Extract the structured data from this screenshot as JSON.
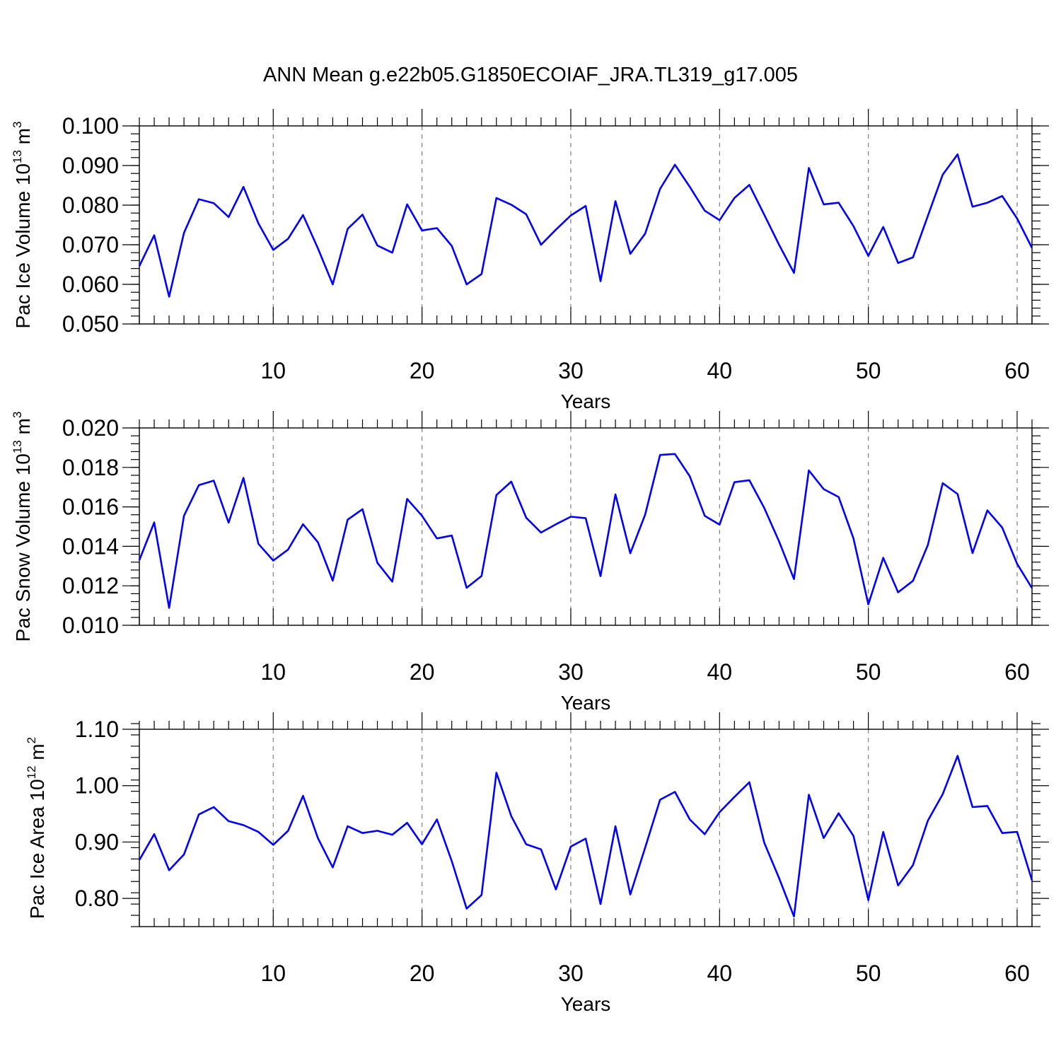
{
  "figure_title": "ANN Mean g.e22b05.G1850ECOIAF_JRA.TL319_g17.005",
  "chart_data": [
    {
      "type": "line",
      "title": "ANN Mean g.e22b05.G1850ECOIAF_JRA.TL319_g17.005",
      "xlabel": "Years",
      "ylabel": {
        "main": "Pac Ice Volume 10",
        "exp": "13",
        "unit": " m",
        "unit_exp": "3"
      },
      "xlim": [
        1,
        61
      ],
      "ylim": [
        0.05,
        0.1
      ],
      "x_ticks": [
        10,
        20,
        30,
        40,
        50,
        60
      ],
      "y_ticks": [
        0.05,
        0.06,
        0.07,
        0.08,
        0.09,
        0.1
      ],
      "y_tick_labels": [
        "0.050",
        "0.060",
        "0.070",
        "0.080",
        "0.090",
        "0.100"
      ],
      "y_minor_step": 0.002,
      "grid": "vertical dashed at major x ticks",
      "color": "#0000ff",
      "x": [
        1,
        2,
        3,
        4,
        5,
        6,
        7,
        8,
        9,
        10,
        11,
        12,
        13,
        14,
        15,
        16,
        17,
        18,
        19,
        20,
        21,
        22,
        23,
        24,
        25,
        26,
        27,
        28,
        29,
        30,
        31,
        32,
        33,
        34,
        35,
        36,
        37,
        38,
        39,
        40,
        41,
        42,
        43,
        44,
        45,
        46,
        47,
        48,
        49,
        50,
        51,
        52,
        53,
        54,
        55,
        56,
        57,
        58,
        59,
        60,
        61
      ],
      "values": [
        0.0646,
        0.0724,
        0.0569,
        0.073,
        0.0815,
        0.0805,
        0.077,
        0.0846,
        0.0754,
        0.0687,
        0.0715,
        0.0775,
        0.0691,
        0.06,
        0.074,
        0.0776,
        0.0698,
        0.068,
        0.0802,
        0.0736,
        0.0742,
        0.0697,
        0.06,
        0.0626,
        0.0818,
        0.0801,
        0.0777,
        0.07,
        0.0738,
        0.0774,
        0.0798,
        0.0608,
        0.081,
        0.0677,
        0.0728,
        0.0841,
        0.0902,
        0.0846,
        0.0786,
        0.0762,
        0.0818,
        0.0851,
        0.0776,
        0.07,
        0.0629,
        0.0894,
        0.0802,
        0.0806,
        0.0747,
        0.0672,
        0.0745,
        0.0654,
        0.0668,
        0.0773,
        0.0877,
        0.0928,
        0.0796,
        0.0806,
        0.0823,
        0.0766,
        0.0692
      ]
    },
    {
      "type": "line",
      "xlabel": "Years",
      "ylabel": {
        "main": "Pac Snow Volume 10",
        "exp": "13",
        "unit": " m",
        "unit_exp": "3"
      },
      "xlim": [
        1,
        61
      ],
      "ylim": [
        0.01,
        0.02
      ],
      "x_ticks": [
        10,
        20,
        30,
        40,
        50,
        60
      ],
      "y_ticks": [
        0.01,
        0.012,
        0.014,
        0.016,
        0.018,
        0.02
      ],
      "y_tick_labels": [
        "0.010",
        "0.012",
        "0.014",
        "0.016",
        "0.018",
        "0.020"
      ],
      "y_minor_step": 0.0004,
      "grid": "vertical dashed at major x ticks",
      "color": "#0000ff",
      "x": [
        1,
        2,
        3,
        4,
        5,
        6,
        7,
        8,
        9,
        10,
        11,
        12,
        13,
        14,
        15,
        16,
        17,
        18,
        19,
        20,
        21,
        22,
        23,
        24,
        25,
        26,
        27,
        28,
        29,
        30,
        31,
        32,
        33,
        34,
        35,
        36,
        37,
        38,
        39,
        40,
        41,
        42,
        43,
        44,
        45,
        46,
        47,
        48,
        49,
        50,
        51,
        52,
        53,
        54,
        55,
        56,
        57,
        58,
        59,
        60,
        61
      ],
      "values": [
        0.0133,
        0.01521,
        0.01088,
        0.01555,
        0.0171,
        0.01733,
        0.0152,
        0.01747,
        0.01413,
        0.01328,
        0.01384,
        0.01512,
        0.01421,
        0.01226,
        0.01535,
        0.01588,
        0.01317,
        0.01221,
        0.0164,
        0.01555,
        0.0144,
        0.01455,
        0.0119,
        0.0125,
        0.0166,
        0.01728,
        0.01545,
        0.0147,
        0.01512,
        0.0155,
        0.01543,
        0.01249,
        0.01663,
        0.01365,
        0.01561,
        0.01863,
        0.01868,
        0.01755,
        0.01555,
        0.0151,
        0.01725,
        0.01735,
        0.01595,
        0.01425,
        0.01234,
        0.01785,
        0.0169,
        0.0165,
        0.0144,
        0.01106,
        0.01342,
        0.01167,
        0.01225,
        0.01407,
        0.0172,
        0.01665,
        0.01366,
        0.01582,
        0.01495,
        0.01311,
        0.01188
      ]
    },
    {
      "type": "line",
      "xlabel": "Years",
      "ylabel": {
        "main": "Pac Ice Area 10",
        "exp": "12",
        "unit": " m",
        "unit_exp": "2"
      },
      "xlim": [
        1,
        61
      ],
      "ylim": [
        0.75,
        1.1
      ],
      "x_ticks": [
        10,
        20,
        30,
        40,
        50,
        60
      ],
      "y_ticks": [
        0.8,
        0.9,
        1.0,
        1.1
      ],
      "y_tick_labels": [
        "0.80",
        "0.90",
        "1.00",
        "1.10"
      ],
      "y_minor_step": 0.02,
      "grid": "vertical dashed at major x ticks",
      "color": "#0000ff",
      "x": [
        1,
        2,
        3,
        4,
        5,
        6,
        7,
        8,
        9,
        10,
        11,
        12,
        13,
        14,
        15,
        16,
        17,
        18,
        19,
        20,
        21,
        22,
        23,
        24,
        25,
        26,
        27,
        28,
        29,
        30,
        31,
        32,
        33,
        34,
        35,
        36,
        37,
        38,
        39,
        40,
        41,
        42,
        43,
        44,
        45,
        46,
        47,
        48,
        49,
        50,
        51,
        52,
        53,
        54,
        55,
        56,
        57,
        58,
        59,
        60,
        61
      ],
      "values": [
        0.868,
        0.914,
        0.85,
        0.878,
        0.949,
        0.962,
        0.937,
        0.93,
        0.918,
        0.895,
        0.92,
        0.982,
        0.907,
        0.855,
        0.928,
        0.916,
        0.92,
        0.913,
        0.934,
        0.896,
        0.94,
        0.866,
        0.782,
        0.806,
        1.023,
        0.946,
        0.896,
        0.887,
        0.816,
        0.892,
        0.906,
        0.79,
        0.928,
        0.807,
        0.89,
        0.975,
        0.989,
        0.94,
        0.914,
        0.953,
        0.98,
        1.006,
        0.899,
        0.836,
        0.768,
        0.984,
        0.907,
        0.951,
        0.911,
        0.797,
        0.918,
        0.823,
        0.859,
        0.938,
        0.985,
        1.053,
        0.962,
        0.964,
        0.916,
        0.918,
        0.832
      ]
    }
  ]
}
